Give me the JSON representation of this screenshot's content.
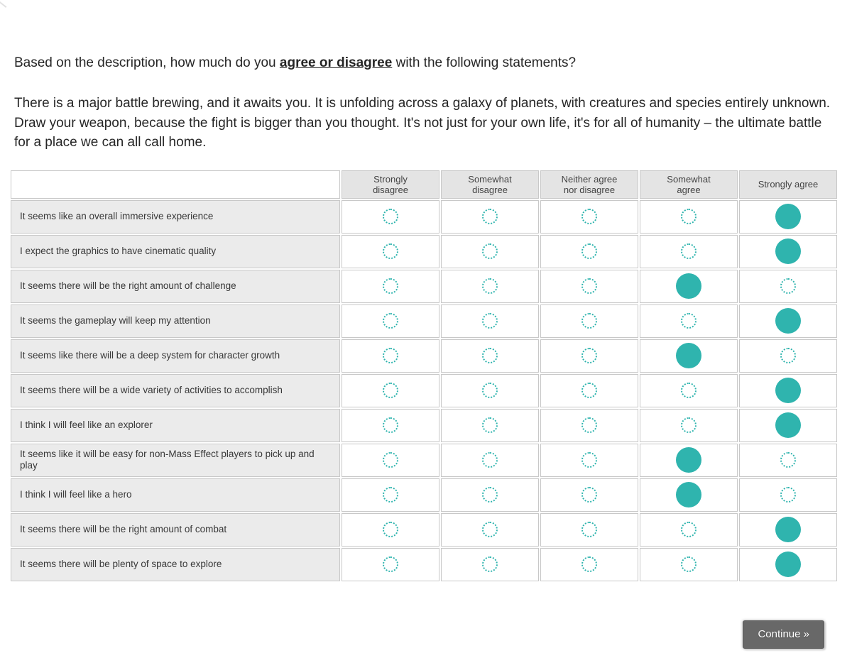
{
  "page": {
    "question_prefix": "Based on the description, how much do you ",
    "question_emphasis": "agree or disagree",
    "question_suffix": " with the following statements?",
    "description": "There is a major battle brewing, and it awaits you. It is unfolding across a galaxy of planets, with creatures and species entirely unknown. Draw your weapon, because the fight is bigger than you thought. It's not just for your own life, it's for all of humanity – the ultimate battle for a place we can all call home."
  },
  "matrix": {
    "columns": [
      "Strongly disagree",
      "Somewhat disagree",
      "Neither agree nor disagree",
      "Somewhat agree",
      "Strongly agree"
    ],
    "rows": [
      {
        "label": "It seems like an overall immersive experience",
        "selected_index": 4
      },
      {
        "label": "I expect the graphics to have cinematic quality",
        "selected_index": 4
      },
      {
        "label": "It seems there will be the right amount of challenge",
        "selected_index": 3
      },
      {
        "label": "It seems the gameplay will keep my attention",
        "selected_index": 4
      },
      {
        "label": "It seems like there will be a deep system for character growth",
        "selected_index": 3
      },
      {
        "label": "It seems there will be a wide variety of activities to accomplish",
        "selected_index": 4
      },
      {
        "label": "I think I will feel like an explorer",
        "selected_index": 4
      },
      {
        "label": "It seems like it will be easy for non-Mass Effect players to pick up and play",
        "selected_index": 3
      },
      {
        "label": "I think I will feel like a hero",
        "selected_index": 3
      },
      {
        "label": "It seems there will be the right amount of combat",
        "selected_index": 4
      },
      {
        "label": "It seems there will be plenty of space to explore",
        "selected_index": 4
      }
    ]
  },
  "footer": {
    "continue_label": "Continue »"
  },
  "colors": {
    "accent_teal": "#2fb4ae",
    "button_gray": "#686868",
    "header_bg": "#e4e4e4",
    "statement_bg": "#ebebeb",
    "cell_border": "#c8c8c8"
  }
}
